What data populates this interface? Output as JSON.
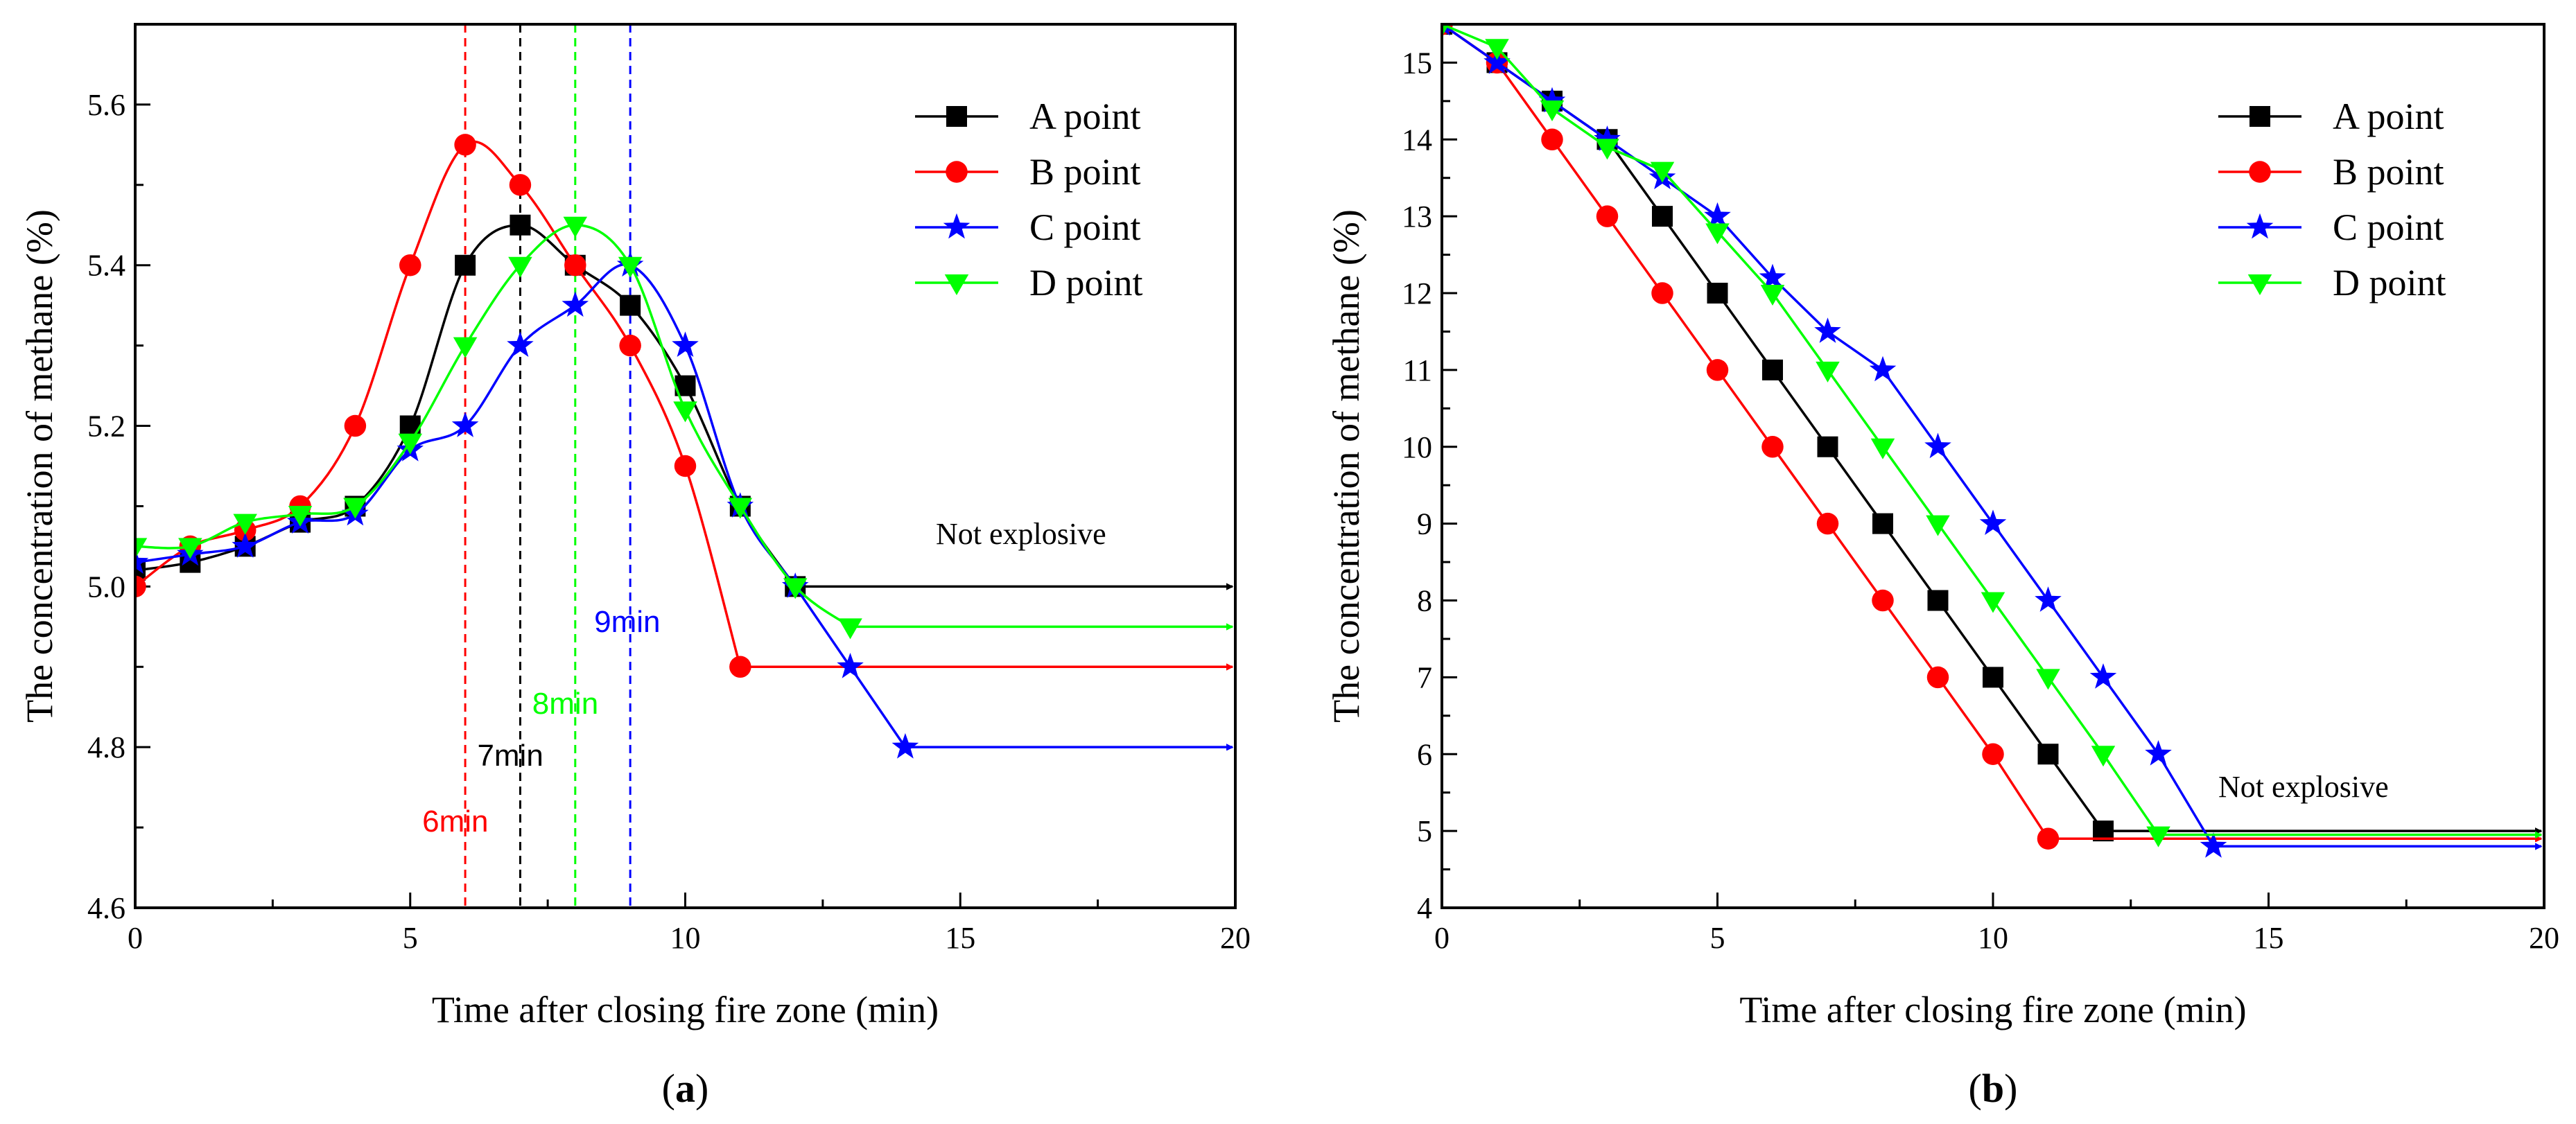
{
  "chart_data": [
    {
      "type": "line",
      "panel_label": "(a)",
      "xlabel": "Time after closing fire zone (min)",
      "ylabel": "The concentration of methane (%)",
      "xlim": [
        0,
        20
      ],
      "ylim": [
        4.6,
        5.7
      ],
      "xticks": [
        0,
        5,
        10,
        15,
        20
      ],
      "yticks": [
        4.6,
        4.8,
        5.0,
        5.2,
        5.4,
        5.6
      ],
      "xtick_labels": [
        "0",
        "5",
        "10",
        "15",
        "20"
      ],
      "ytick_labels": [
        "4.6",
        "4.8",
        "5.0",
        "5.2",
        "5.4",
        "5.6"
      ],
      "legend_position": "top-right",
      "series": [
        {
          "name": "A point",
          "color": "#000000",
          "marker": "square",
          "x": [
            0,
            1,
            2,
            3,
            4,
            5,
            6,
            7,
            8,
            9,
            10,
            11,
            12
          ],
          "y": [
            5.02,
            5.03,
            5.05,
            5.08,
            5.1,
            5.2,
            5.4,
            5.45,
            5.4,
            5.35,
            5.25,
            5.1,
            5.0
          ],
          "tail_y": 5.0
        },
        {
          "name": "B point",
          "color": "#ff0000",
          "marker": "circle",
          "x": [
            0,
            1,
            2,
            3,
            4,
            5,
            6,
            7,
            8,
            9,
            10,
            11
          ],
          "y": [
            5.0,
            5.05,
            5.07,
            5.1,
            5.2,
            5.4,
            5.55,
            5.5,
            5.4,
            5.3,
            5.15,
            4.9
          ],
          "tail_y": 4.9
        },
        {
          "name": "C point",
          "color": "#0000ff",
          "marker": "star",
          "x": [
            0,
            1,
            2,
            3,
            4,
            5,
            6,
            7,
            8,
            9,
            10,
            11,
            12,
            13,
            14
          ],
          "y": [
            5.03,
            5.04,
            5.05,
            5.08,
            5.09,
            5.17,
            5.2,
            5.3,
            5.35,
            5.4,
            5.3,
            5.1,
            5.0,
            4.9,
            4.8
          ],
          "tail_y": 4.8
        },
        {
          "name": "D point",
          "color": "#00ff00",
          "marker": "triangle-down",
          "x": [
            0,
            1,
            2,
            3,
            4,
            5,
            6,
            7,
            8,
            9,
            10,
            11,
            12,
            13
          ],
          "y": [
            5.05,
            5.05,
            5.08,
            5.09,
            5.1,
            5.18,
            5.3,
            5.4,
            5.45,
            5.4,
            5.22,
            5.1,
            5.0,
            4.95
          ],
          "tail_y": 4.95
        }
      ],
      "vlines": [
        {
          "x": 6,
          "color": "#ff0000",
          "label": "6min"
        },
        {
          "x": 7,
          "color": "#000000",
          "label": "7min"
        },
        {
          "x": 8,
          "color": "#00ff00",
          "label": "8min"
        },
        {
          "x": 9,
          "color": "#0000ff",
          "label": "9min"
        }
      ],
      "annotation": "Not explosive"
    },
    {
      "type": "line",
      "panel_label": "(b)",
      "xlabel": "Time after closing fire zone (min)",
      "ylabel": "The concentration of methane (%)",
      "xlim": [
        0,
        20
      ],
      "ylim": [
        4,
        15.5
      ],
      "xticks": [
        0,
        5,
        10,
        15,
        20
      ],
      "yticks": [
        4,
        5,
        6,
        7,
        8,
        9,
        10,
        11,
        12,
        13,
        14,
        15
      ],
      "xtick_labels": [
        "0",
        "5",
        "10",
        "15",
        "20"
      ],
      "ytick_labels": [
        "4",
        "5",
        "6",
        "7",
        "8",
        "9",
        "10",
        "11",
        "12",
        "13",
        "14",
        "15"
      ],
      "legend_position": "top-right",
      "series": [
        {
          "name": "A point",
          "color": "#000000",
          "marker": "square",
          "x": [
            0,
            1,
            2,
            3,
            4,
            5,
            6,
            7,
            8,
            9,
            10,
            11,
            12
          ],
          "y": [
            15.5,
            15.0,
            14.5,
            14.0,
            13.0,
            12.0,
            11.0,
            10.0,
            9.0,
            8.0,
            7.0,
            6.0,
            5.0
          ],
          "tail_y": 5.0
        },
        {
          "name": "B point",
          "color": "#ff0000",
          "marker": "circle",
          "x": [
            0,
            1,
            2,
            3,
            4,
            5,
            6,
            7,
            8,
            9,
            10,
            11
          ],
          "y": [
            15.5,
            15.0,
            14.0,
            13.0,
            12.0,
            11.0,
            10.0,
            9.0,
            8.0,
            7.0,
            6.0,
            4.9
          ],
          "tail_y": 4.9
        },
        {
          "name": "C point",
          "color": "#0000ff",
          "marker": "star",
          "x": [
            0,
            1,
            2,
            3,
            4,
            5,
            6,
            7,
            8,
            9,
            10,
            11,
            12,
            13,
            14
          ],
          "y": [
            15.5,
            15.0,
            14.5,
            14.0,
            13.5,
            13.0,
            12.2,
            11.5,
            11.0,
            10.0,
            9.0,
            8.0,
            7.0,
            6.0,
            4.8
          ],
          "tail_y": 4.8
        },
        {
          "name": "D point",
          "color": "#00ff00",
          "marker": "triangle-down",
          "x": [
            0,
            1,
            2,
            3,
            4,
            5,
            6,
            7,
            8,
            9,
            10,
            11,
            12,
            13
          ],
          "y": [
            15.5,
            15.2,
            14.4,
            13.9,
            13.6,
            12.8,
            12.0,
            11.0,
            10.0,
            9.0,
            8.0,
            7.0,
            6.0,
            4.95
          ],
          "tail_y": 4.95
        }
      ],
      "annotation": "Not explosive"
    }
  ]
}
